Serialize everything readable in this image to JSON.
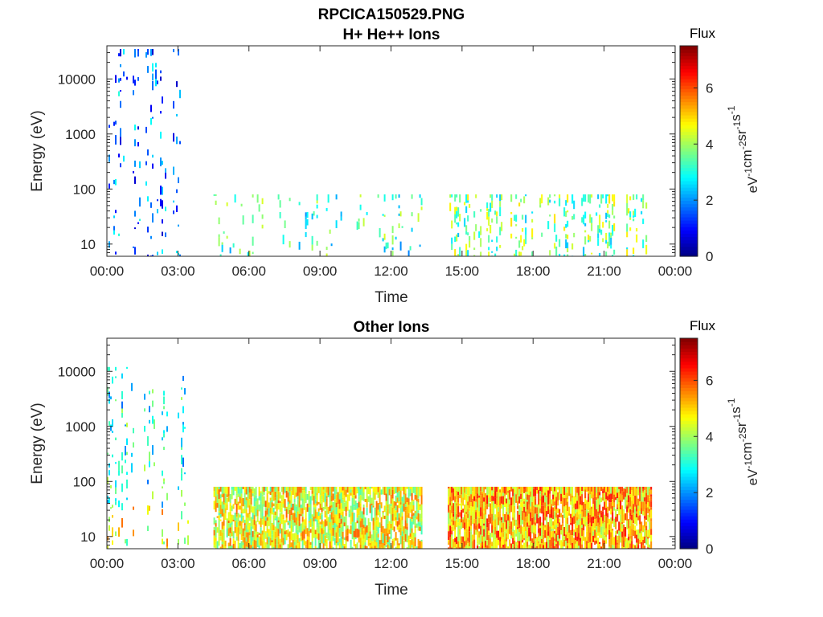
{
  "figure": {
    "title_line1": "RPCICA150529.PNG"
  },
  "colors": {
    "axis": "#262626",
    "background": "#ffffff"
  },
  "colorbar": {
    "title": "Flux",
    "unit_parts": [
      "eV",
      "-1",
      "cm",
      "-2",
      "sr",
      "-1",
      "s",
      "-1"
    ],
    "range": [
      0,
      7.5
    ],
    "ticks": [
      "0",
      "2",
      "4",
      "6"
    ],
    "colormap": "jet"
  },
  "chart_data": [
    {
      "type": "heatmap",
      "title": "H+ He++ Ions",
      "xlabel": "Time",
      "ylabel": "Energy (eV)",
      "yscale": "log",
      "ylim": [
        6,
        40000
      ],
      "xlim": [
        0,
        24
      ],
      "x_ticks": [
        "00:00",
        "03:00",
        "06:00",
        "09:00",
        "12:00",
        "15:00",
        "18:00",
        "21:00",
        "00:00"
      ],
      "y_ticks": [
        "10",
        "100",
        "1000",
        "10000"
      ],
      "grid": false,
      "data_segments": [
        {
          "start_hour": 0.0,
          "end_hour": 3.4,
          "e_min": 6,
          "e_max": 35000,
          "typical_flux": 1.8,
          "density": 0.22
        },
        {
          "start_hour": 4.5,
          "end_hour": 13.3,
          "e_min": 6,
          "e_max": 80,
          "typical_flux": 3.2,
          "density": 0.25
        },
        {
          "start_hour": 14.4,
          "end_hour": 22.8,
          "e_min": 6,
          "e_max": 80,
          "typical_flux": 3.6,
          "density": 0.45
        }
      ]
    },
    {
      "type": "heatmap",
      "title": "Other Ions",
      "xlabel": "Time",
      "ylabel": "Energy (eV)",
      "yscale": "log",
      "ylim": [
        6,
        40000
      ],
      "xlim": [
        0,
        24
      ],
      "x_ticks": [
        "00:00",
        "03:00",
        "06:00",
        "09:00",
        "12:00",
        "15:00",
        "18:00",
        "21:00",
        "00:00"
      ],
      "y_ticks": [
        "10",
        "100",
        "1000",
        "10000"
      ],
      "grid": false,
      "data_segments": [
        {
          "start_hour": 0.0,
          "end_hour": 3.4,
          "e_min": 6,
          "e_max": 12000,
          "typical_flux": 3.0,
          "density": 0.3
        },
        {
          "start_hour": 4.5,
          "end_hour": 13.3,
          "e_min": 6,
          "e_max": 80,
          "typical_flux": 4.6,
          "density": 0.9
        },
        {
          "start_hour": 14.4,
          "end_hour": 23.0,
          "e_min": 6,
          "e_max": 80,
          "typical_flux": 5.2,
          "density": 0.95
        }
      ]
    }
  ]
}
